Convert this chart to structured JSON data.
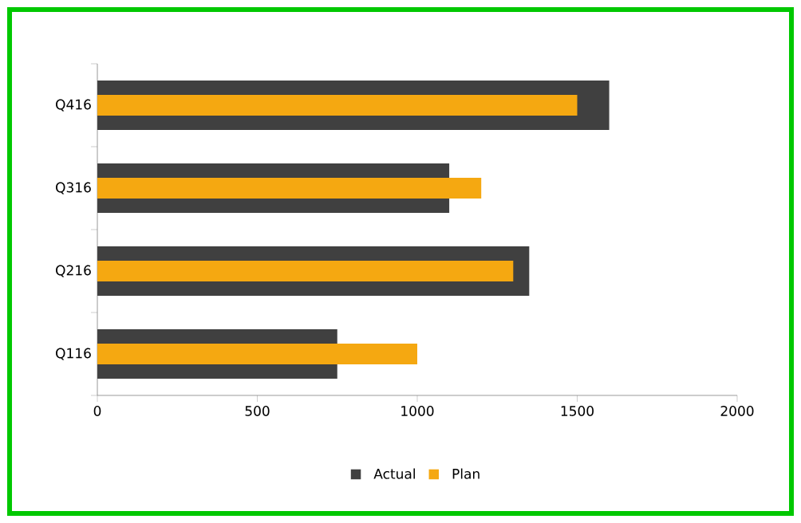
{
  "chart_data": {
    "type": "bar",
    "orientation": "horizontal",
    "categories": [
      "Q416",
      "Q316",
      "Q216",
      "Q116"
    ],
    "series": [
      {
        "name": "Actual",
        "color": "#404040",
        "values": [
          1600,
          1100,
          1350,
          750
        ]
      },
      {
        "name": "Plan",
        "color": "#f5a811",
        "values": [
          1500,
          1200,
          1300,
          1000
        ]
      }
    ],
    "xlim": [
      0,
      2000
    ],
    "xticks": [
      0,
      500,
      1000,
      1500,
      2000
    ],
    "grid": false,
    "legend": "bottom"
  }
}
